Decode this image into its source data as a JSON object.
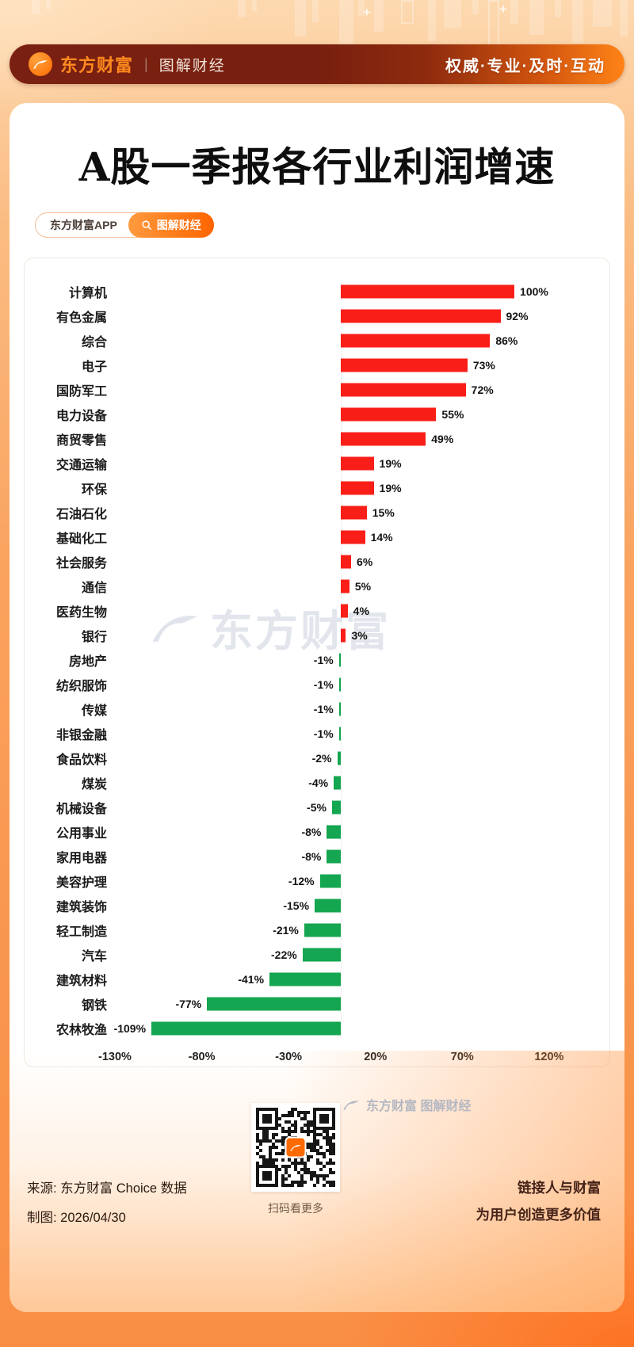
{
  "header": {
    "brand": "东方财富",
    "divider": "|",
    "sub_brand": "图解财经",
    "slogan": "权威·专业·及时·互动"
  },
  "hero": {
    "title": "A股一季报各行业利润增速",
    "app_pill": "东方财富APP",
    "tag_pill": "图解财经"
  },
  "watermarks": {
    "chart": "东方财富",
    "footer": "东方财富 图解财经"
  },
  "chart_data": {
    "type": "bar",
    "orientation": "horizontal",
    "title": "A股一季报各行业利润增速",
    "unit": "%",
    "categories": [
      "计算机",
      "有色金属",
      "综合",
      "电子",
      "国防军工",
      "电力设备",
      "商贸零售",
      "交通运输",
      "环保",
      "石油石化",
      "基础化工",
      "社会服务",
      "通信",
      "医药生物",
      "银行",
      "房地产",
      "纺织服饰",
      "传媒",
      "非银金融",
      "食品饮料",
      "煤炭",
      "机械设备",
      "公用事业",
      "家用电器",
      "美容护理",
      "建筑装饰",
      "轻工制造",
      "汽车",
      "建筑材料",
      "钢铁",
      "农林牧渔"
    ],
    "values": [
      100,
      92,
      86,
      73,
      72,
      55,
      49,
      19,
      19,
      15,
      14,
      6,
      5,
      4,
      3,
      -1,
      -1,
      -1,
      -1,
      -2,
      -4,
      -5,
      -8,
      -8,
      -12,
      -15,
      -21,
      -22,
      -41,
      -77,
      -109
    ],
    "x_ticks": [
      -130,
      -80,
      -30,
      20,
      70,
      120
    ],
    "x_tick_labels": [
      "-130%",
      "-80%",
      "-30%",
      "20%",
      "70%",
      "120%"
    ],
    "xlim": [
      -130,
      152
    ],
    "positive_color": "#f91e17",
    "negative_color": "#14a650",
    "grid": false,
    "legend": false
  },
  "footer": {
    "source": "来源: 东方财富 Choice 数据",
    "date": "制图: 2026/04/30",
    "qr_caption": "扫码看更多",
    "slogan_line1": "链接人与财富",
    "slogan_line2": "为用户创造更多价值"
  },
  "colors": {
    "accent": "#ff6a00",
    "header_bg": "#7a2012",
    "positive": "#f91e17",
    "negative": "#14a650"
  }
}
